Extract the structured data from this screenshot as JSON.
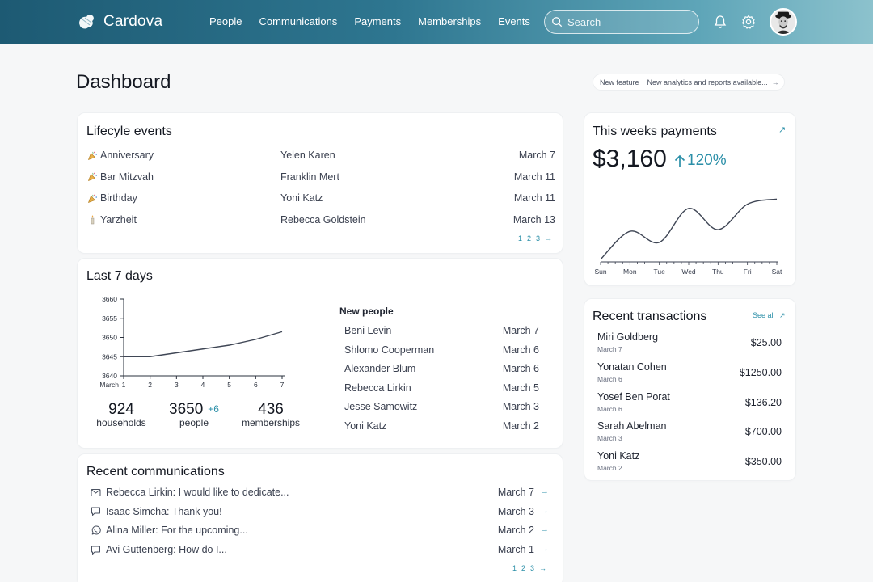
{
  "app": {
    "name": "Cardova"
  },
  "nav": {
    "items": [
      "People",
      "Communications",
      "Payments",
      "Memberships",
      "Events"
    ]
  },
  "search": {
    "placeholder": "Search",
    "value": ""
  },
  "page": {
    "title": "Dashboard"
  },
  "feature": {
    "tag": "New feature",
    "text": "New analytics and reports available..."
  },
  "lifecycle": {
    "title": "Lifecyle events",
    "rows": [
      {
        "icon": "party-icon",
        "event": "Anniversary",
        "person": "Yelen Karen",
        "date": "March 7"
      },
      {
        "icon": "party-icon",
        "event": "Bar Mitzvah",
        "person": "Franklin Mert",
        "date": "March 11"
      },
      {
        "icon": "party-icon",
        "event": "Birthday",
        "person": "Yoni Katz",
        "date": "March 11"
      },
      {
        "icon": "candle-icon",
        "event": "Yarzheit",
        "person": "Rebecca Goldstein",
        "date": "March 13"
      }
    ],
    "pages": [
      "1",
      "2",
      "3"
    ]
  },
  "last7": {
    "title": "Last 7 days",
    "chart_data": {
      "type": "line",
      "x": [
        1,
        2,
        3,
        4,
        5,
        6,
        7
      ],
      "values": [
        3645,
        3645,
        3646,
        3647,
        3648,
        3649.5,
        3651.5
      ],
      "xlabel": "March",
      "yticks": [
        3660,
        3655,
        3650,
        3645,
        3640
      ],
      "xticks": [
        "1",
        "2",
        "3",
        "4",
        "5",
        "6",
        "7"
      ],
      "ylim": [
        3640,
        3660
      ]
    },
    "stats": [
      {
        "value": "924",
        "label": "households",
        "delta": ""
      },
      {
        "value": "3650",
        "label": "people",
        "delta": "+6"
      },
      {
        "value": "436",
        "label": "memberships",
        "delta": ""
      }
    ],
    "new_people_title": "New people",
    "new_people": [
      {
        "name": "Beni Levin",
        "date": "March 7"
      },
      {
        "name": "Shlomo Cooperman",
        "date": "March 6"
      },
      {
        "name": "Alexander Blum",
        "date": "March 6"
      },
      {
        "name": "Rebecca Lirkin",
        "date": "March 5"
      },
      {
        "name": "Jesse Samowitz",
        "date": "March 3"
      },
      {
        "name": "Yoni Katz",
        "date": "March 2"
      }
    ]
  },
  "comms": {
    "title": "Recent communications",
    "rows": [
      {
        "icon": "mail-icon",
        "text": "Rebecca Lirkin: I would like to dedicate...",
        "date": "March 7"
      },
      {
        "icon": "chat-icon",
        "text": "Isaac Simcha: Thank you!",
        "date": "March 3"
      },
      {
        "icon": "whatsapp-icon",
        "text": "Alina Miller: For the upcoming...",
        "date": "March 2"
      },
      {
        "icon": "chat-icon",
        "text": "Avi Guttenberg: How do I...",
        "date": "March 1"
      }
    ],
    "pages": [
      "1",
      "2",
      "3"
    ]
  },
  "payments": {
    "title": "This weeks payments",
    "amount": "$3,160",
    "change": "120%",
    "chart_data": {
      "type": "line",
      "categories": [
        "Sun",
        "Mon",
        "Tue",
        "Wed",
        "Thu",
        "Fri",
        "Sat"
      ],
      "values": [
        3,
        36,
        23,
        63,
        38,
        68,
        74
      ],
      "ylim": [
        0,
        80
      ]
    }
  },
  "transactions": {
    "title": "Recent transactions",
    "see_all": "See all",
    "rows": [
      {
        "name": "Miri Goldberg",
        "date": "March 7",
        "amount": "$25.00"
      },
      {
        "name": "Yonatan Cohen",
        "date": "March 6",
        "amount": "$1250.00"
      },
      {
        "name": "Yosef Ben Porat",
        "date": "March 6",
        "amount": "$136.20"
      },
      {
        "name": "Sarah Abelman",
        "date": "March 3",
        "amount": "$700.00"
      },
      {
        "name": "Yoni Katz",
        "date": "March 2",
        "amount": "$350.00"
      }
    ]
  },
  "colors": {
    "accent": "#2b8fa8",
    "line": "#3f4655",
    "header_start": "#1d5a73",
    "header_end": "#8cc2cd"
  }
}
